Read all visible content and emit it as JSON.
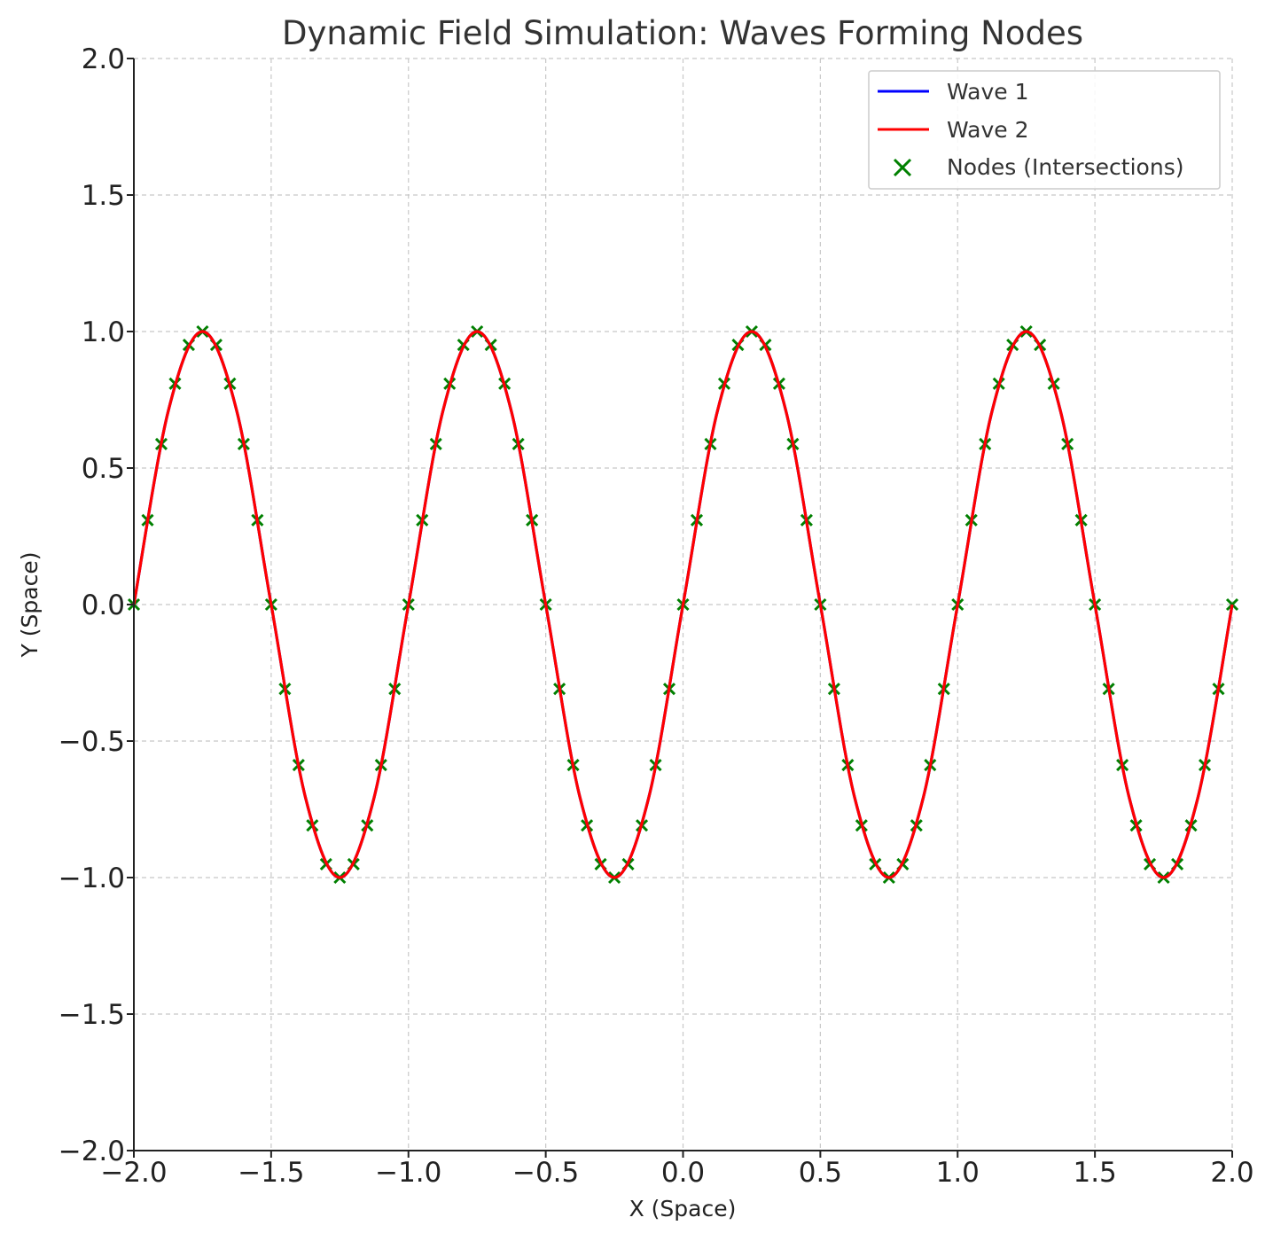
{
  "chart_data": {
    "type": "line",
    "title": "Dynamic Field Simulation: Waves Forming Nodes",
    "xlabel": "X (Space)",
    "ylabel": "Y (Space)",
    "xlim": [
      -2.0,
      2.0
    ],
    "ylim": [
      -2.0,
      2.0
    ],
    "x_ticks": [
      "−2.0",
      "−1.5",
      "−1.0",
      "−0.5",
      "0.0",
      "0.5",
      "1.0",
      "1.5",
      "2.0"
    ],
    "y_ticks": [
      "2.0",
      "1.5",
      "1.0",
      "0.5",
      "0.0",
      "−0.5",
      "−1.0",
      "−1.5",
      "−2.0"
    ],
    "grid": true,
    "legend_position": "top-right",
    "series": [
      {
        "name": "Wave 1",
        "kind": "line",
        "color": "#0000ff",
        "x": [
          -2.0,
          -1.875,
          -1.75,
          -1.625,
          -1.5,
          -1.375,
          -1.25,
          -1.125,
          -1.0,
          -0.875,
          -0.75,
          -0.625,
          -0.5,
          -0.375,
          -0.25,
          -0.125,
          0.0,
          0.125,
          0.25,
          0.375,
          0.5,
          0.625,
          0.75,
          0.875,
          1.0,
          1.125,
          1.25,
          1.375,
          1.5,
          1.625,
          1.75,
          1.875,
          2.0
        ],
        "y": [
          0.0,
          0.707,
          1.0,
          0.707,
          0.0,
          -0.707,
          -1.0,
          -0.707,
          0.0,
          0.707,
          1.0,
          0.707,
          0.0,
          -0.707,
          -1.0,
          -0.707,
          0.0,
          0.707,
          1.0,
          0.707,
          0.0,
          -0.707,
          -1.0,
          -0.707,
          0.0,
          0.707,
          1.0,
          0.707,
          0.0,
          -0.707,
          -1.0,
          -0.707,
          0.0
        ]
      },
      {
        "name": "Wave 2",
        "kind": "line",
        "color": "#ff0000",
        "x": [
          -2.0,
          -1.875,
          -1.75,
          -1.625,
          -1.5,
          -1.375,
          -1.25,
          -1.125,
          -1.0,
          -0.875,
          -0.75,
          -0.625,
          -0.5,
          -0.375,
          -0.25,
          -0.125,
          0.0,
          0.125,
          0.25,
          0.375,
          0.5,
          0.625,
          0.75,
          0.875,
          1.0,
          1.125,
          1.25,
          1.375,
          1.5,
          1.625,
          1.75,
          1.875,
          2.0
        ],
        "y": [
          0.0,
          0.707,
          1.0,
          0.707,
          0.0,
          -0.707,
          -1.0,
          -0.707,
          0.0,
          0.707,
          1.0,
          0.707,
          0.0,
          -0.707,
          -1.0,
          -0.707,
          0.0,
          0.707,
          1.0,
          0.707,
          0.0,
          -0.707,
          -1.0,
          -0.707,
          0.0,
          0.707,
          1.0,
          0.707,
          0.0,
          -0.707,
          -1.0,
          -0.707,
          0.0
        ]
      },
      {
        "name": "Nodes (Intersections)",
        "kind": "scatter",
        "marker": "x",
        "color": "#008000",
        "x": [
          -2.0,
          -1.95,
          -1.9,
          -1.85,
          -1.8,
          -1.75,
          -1.7,
          -1.65,
          -1.6,
          -1.55,
          -1.5,
          -1.45,
          -1.4,
          -1.35,
          -1.3,
          -1.25,
          -1.2,
          -1.15,
          -1.1,
          -1.05,
          -1.0,
          -0.95,
          -0.9,
          -0.85,
          -0.8,
          -0.75,
          -0.7,
          -0.65,
          -0.6,
          -0.55,
          -0.5,
          -0.45,
          -0.4,
          -0.35,
          -0.3,
          -0.25,
          -0.2,
          -0.15,
          -0.1,
          -0.05,
          0.0,
          0.05,
          0.1,
          0.15,
          0.2,
          0.25,
          0.3,
          0.35,
          0.4,
          0.45,
          0.5,
          0.55,
          0.6,
          0.65,
          0.7,
          0.75,
          0.8,
          0.85,
          0.9,
          0.95,
          1.0,
          1.05,
          1.1,
          1.15,
          1.2,
          1.25,
          1.3,
          1.35,
          1.4,
          1.45,
          1.5,
          1.55,
          1.6,
          1.65,
          1.7,
          1.75,
          1.8,
          1.85,
          1.9,
          1.95,
          2.0
        ],
        "y": [
          0.0,
          0.309,
          0.588,
          0.809,
          0.951,
          1.0,
          0.951,
          0.809,
          0.588,
          0.309,
          0.0,
          -0.309,
          -0.588,
          -0.809,
          -0.951,
          -1.0,
          -0.951,
          -0.809,
          -0.588,
          -0.309,
          0.0,
          0.309,
          0.588,
          0.809,
          0.951,
          1.0,
          0.951,
          0.809,
          0.588,
          0.309,
          0.0,
          -0.309,
          -0.588,
          -0.809,
          -0.951,
          -1.0,
          -0.951,
          -0.809,
          -0.588,
          -0.309,
          0.0,
          0.309,
          0.588,
          0.809,
          0.951,
          1.0,
          0.951,
          0.809,
          0.588,
          0.309,
          0.0,
          -0.309,
          -0.588,
          -0.809,
          -0.951,
          -1.0,
          -0.951,
          -0.809,
          -0.588,
          -0.309,
          0.0,
          0.309,
          0.588,
          0.809,
          0.951,
          1.0,
          0.951,
          0.809,
          0.588,
          0.309,
          0.0,
          -0.309,
          -0.588,
          -0.809,
          -0.951,
          -1.0,
          -0.951,
          -0.809,
          -0.588,
          -0.309,
          0.0
        ]
      }
    ]
  }
}
